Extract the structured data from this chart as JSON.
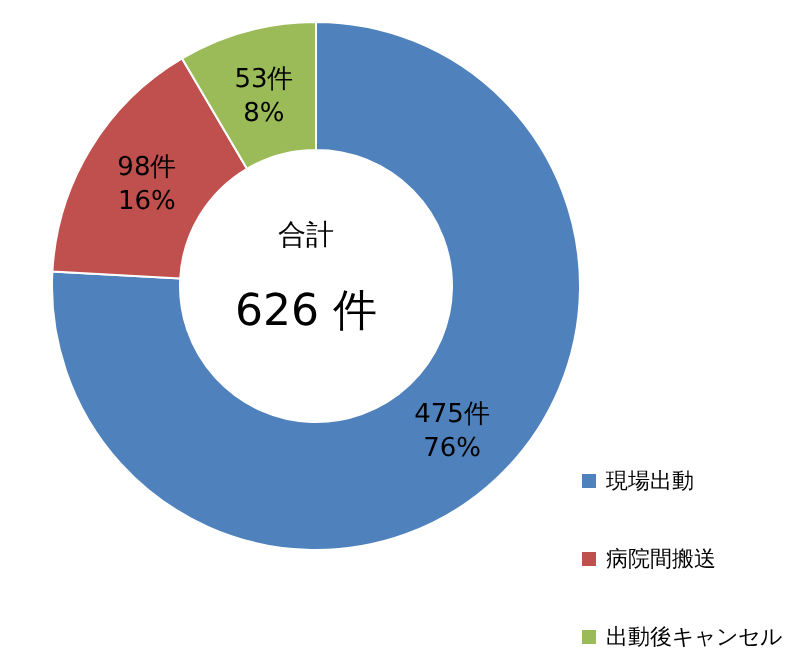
{
  "chart_data": {
    "type": "donut",
    "categories": [
      "現場出動",
      "病院間搬送",
      "出動後キャンセル"
    ],
    "values": [
      475,
      98,
      53
    ],
    "colors": [
      "#4f81bd",
      "#c0504d",
      "#9bbb59"
    ],
    "value_labels": [
      "475件\n76%",
      "98件\n16%",
      "53件\n8%"
    ],
    "annotations": [
      "合計",
      "626 件"
    ],
    "legend": "bottom right"
  }
}
